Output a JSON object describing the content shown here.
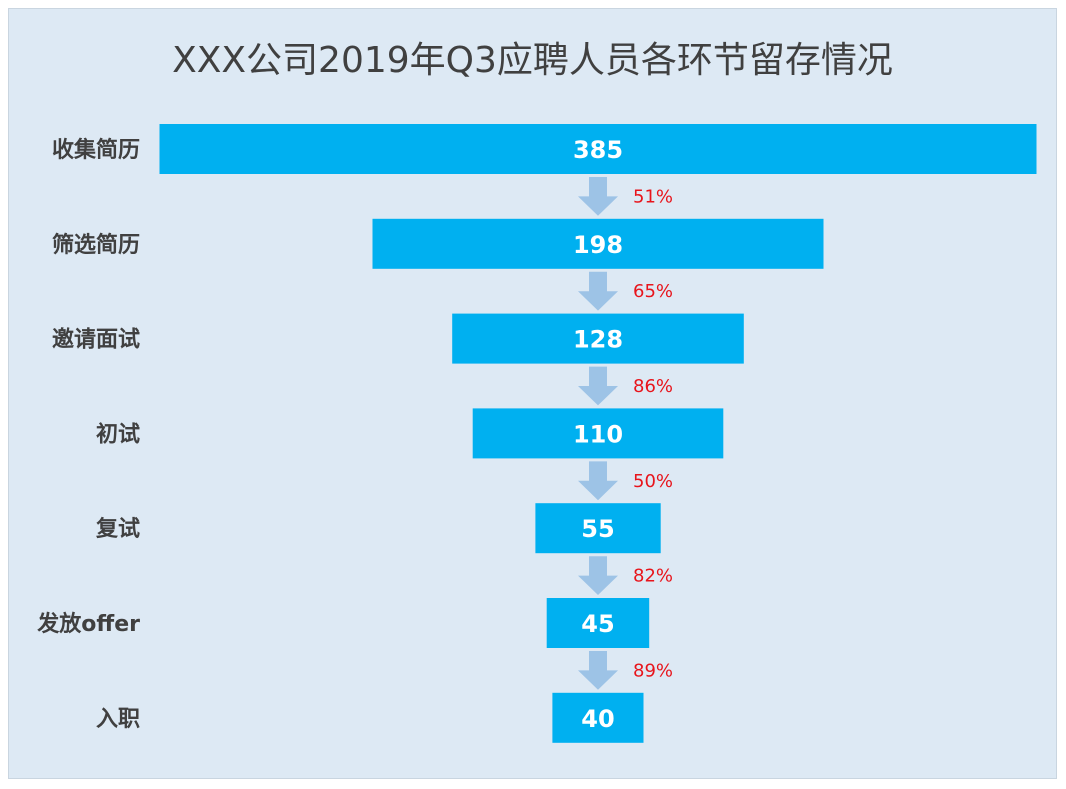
{
  "chart_data": {
    "type": "bar",
    "title": "XXX公司2019年Q3应聘人员各环节留存情况",
    "categories": [
      "收集简历",
      "筛选简历",
      "邀请面试",
      "初试",
      "复试",
      "发放offer",
      "入职"
    ],
    "values": [
      385,
      198,
      128,
      110,
      55,
      45,
      40
    ],
    "conversion_rates": [
      "51%",
      "65%",
      "86%",
      "50%",
      "82%",
      "89%"
    ],
    "xlabel": "",
    "ylabel": "",
    "grid": false,
    "colors": {
      "bar": "#00b0f0",
      "arrow": "#9dc3e6",
      "rate_text": "#e8141b",
      "background": "#dde9f4"
    }
  }
}
